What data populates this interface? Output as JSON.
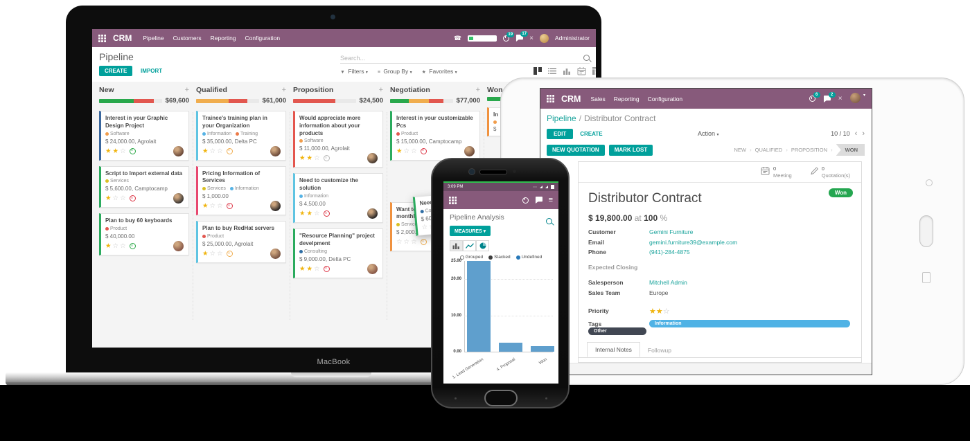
{
  "laptop": {
    "brand_label": "MacBook",
    "navbar": {
      "app_name": "CRM",
      "menus": [
        "Pipeline",
        "Customers",
        "Reporting",
        "Configuration"
      ],
      "timer_badge": "19",
      "chat_badge": "17",
      "close_glyph": "×",
      "user_name": "Administrator"
    },
    "control": {
      "page_title": "Pipeline",
      "create_label": "CREATE",
      "import_label": "IMPORT",
      "search_placeholder": "Search...",
      "filters_label": "Filters",
      "groupby_label": "Group By",
      "favorites_label": "Favorites",
      "view_switcher": [
        "kanban",
        "list",
        "graph",
        "calendar",
        "pivot"
      ],
      "active_view": "kanban"
    },
    "kanban": {
      "columns": [
        {
          "name": "New",
          "amount": "$69,600",
          "progress": [
            {
              "color": "#29a84c",
              "pct": 55
            },
            {
              "color": "#e2574f",
              "pct": 32
            }
          ],
          "cards": [
            {
              "title": "Interest in your Graphic Design Project",
              "tags": [
                {
                  "name": "Software",
                  "color": "#f19d4b"
                }
              ],
              "amount": "$ 24,000.00, Agrolait",
              "stars": 2,
              "clock": "#28a745",
              "border": "#3a679e",
              "avatar": "#6d4b3a"
            },
            {
              "title": "Script to Import external data",
              "tags": [
                {
                  "name": "Services",
                  "color": "#d9bf23"
                }
              ],
              "amount": "$ 5,600.00, Camptocamp",
              "stars": 1,
              "clock": "#dc3545",
              "border": "#2bab5e",
              "avatar": "#3f3a36"
            },
            {
              "title": "Plan to buy 60 keyboards",
              "tags": [
                {
                  "name": "Product",
                  "color": "#e2574f"
                }
              ],
              "amount": "$ 40,000.00",
              "stars": 1,
              "clock": "#28a745",
              "border": "#2bab5e",
              "avatar": "#8a5a4a"
            }
          ]
        },
        {
          "name": "Qualified",
          "amount": "$61,000",
          "progress": [
            {
              "color": "#f0ad4e",
              "pct": 52
            },
            {
              "color": "#e2574f",
              "pct": 30
            }
          ],
          "cards": [
            {
              "title": "Trainee's training plan in your Organization",
              "tags": [
                {
                  "name": "Information",
                  "color": "#56b3e5"
                },
                {
                  "name": "Training",
                  "color": "#ec7a47"
                }
              ],
              "amount": "$ 35,000.00, Delta PC",
              "stars": 1,
              "clock": "#f0ad4e",
              "border": "#5fc4e2",
              "avatar": "#6d4b3a"
            },
            {
              "title": "Pricing Information of Services",
              "tags": [
                {
                  "name": "Services",
                  "color": "#d9bf23"
                },
                {
                  "name": "Information",
                  "color": "#56b3e5"
                }
              ],
              "amount": "$ 1,000.00",
              "stars": 1,
              "clock": "#dc3545",
              "border": "#e8486f",
              "avatar": "#2e2a28"
            },
            {
              "title": "Plan to buy RedHat servers",
              "tags": [
                {
                  "name": "Product",
                  "color": "#e2574f"
                }
              ],
              "amount": "$ 25,000.00, Agrolait",
              "stars": 1,
              "clock": "#f0ad4e",
              "border": "#5fc4e2",
              "avatar": "#7a5644"
            }
          ]
        },
        {
          "name": "Proposition",
          "amount": "$24,500",
          "progress": [
            {
              "color": "#e2574f",
              "pct": 67
            }
          ],
          "cards": [
            {
              "title": "Would appreciate more information about your products",
              "tags": [
                {
                  "name": "Software",
                  "color": "#f19d4b"
                }
              ],
              "amount": "$ 11,000.00, Agrolait",
              "stars": 2,
              "clock": "#b9b9b9",
              "border": "#e4564e",
              "avatar": "#4a3b30"
            },
            {
              "title": "Need to customize the solution",
              "tags": [
                {
                  "name": "Information",
                  "color": "#56b3e5"
                }
              ],
              "amount": "$ 4,500.00",
              "stars": 2,
              "clock": "#dc3545",
              "border": "#5fc4e2",
              "avatar": "#2e2a28"
            },
            {
              "title": "\"Resource Planning\" project develpment",
              "tags": [
                {
                  "name": "Consulting",
                  "color": "#2e6da4"
                }
              ],
              "amount": "$ 9,000.00, Delta PC",
              "stars": 2,
              "clock": "#dc3545",
              "border": "#2bab5e",
              "avatar": "#8a5a4a"
            }
          ]
        },
        {
          "name": "Negotiation",
          "amount": "$77,000",
          "progress": [
            {
              "color": "#29a84c",
              "pct": 30
            },
            {
              "color": "#f0ad4e",
              "pct": 32
            },
            {
              "color": "#e2574f",
              "pct": 23
            }
          ],
          "cards": [
            {
              "title": "Interest in your customizable Pcs",
              "tags": [
                {
                  "name": "Product",
                  "color": "#e2574f"
                }
              ],
              "amount": "$ 15,000.00, Camptocamp",
              "stars": 1,
              "clock": "#dc3545",
              "border": "#2bab5e",
              "avatar": "#6d4b3a"
            },
            {
              "title": "Want to subscribe to your monthly solution",
              "tags": [
                {
                  "name": "Services",
                  "color": "#d9bf23"
                }
              ],
              "amount": "$ 2,000.00, Think Big Systems",
              "stars": 0,
              "clock": "#f0ad4e",
              "border": "#f0923f",
              "avatar": "#7a5644",
              "gap_before": 52
            }
          ]
        },
        {
          "name": "Won",
          "amount": "",
          "progress": [
            {
              "color": "#29a84c",
              "pct": 45
            }
          ],
          "cards": [
            {
              "title": "In",
              "tags": [
                {
                  "name": "",
                  "color": "#f19d4b"
                }
              ],
              "amount": "$",
              "stars": 0,
              "border": "#f0923f",
              "minimal": true
            }
          ]
        }
      ],
      "drag_card": {
        "title": "Need 20 Days of Consultancy",
        "tags": [
          {
            "name": "Consulting",
            "color": "#2e6da4"
          }
        ],
        "amount": "$ 60,000.00",
        "stars": 0,
        "border": "#2bab5e"
      }
    }
  },
  "tablet": {
    "navbar": {
      "app_name": "CRM",
      "menus": [
        "Sales",
        "Reporting",
        "Configuration"
      ],
      "timer_badge": "6",
      "chat_badge": "2",
      "close_glyph": "×"
    },
    "breadcrumb": {
      "parent": "Pipeline",
      "sep": "/",
      "current": "Distributor Contract"
    },
    "actions": {
      "edit": "EDIT",
      "create": "CREATE",
      "action": "Action",
      "pager": "10 / 10",
      "prev": "‹",
      "next": "›"
    },
    "buttons": {
      "new_quotation": "NEW QUOTATION",
      "mark_lost": "MARK LOST"
    },
    "stages": [
      "NEW",
      "QUALIFIED",
      "PROPOSITION",
      "WON"
    ],
    "active_stage": "WON",
    "stats": [
      {
        "icon": "calendar",
        "count": "0",
        "label": "Meeting"
      },
      {
        "icon": "pencil",
        "count": "0",
        "label": "Quotation(s)"
      }
    ],
    "record": {
      "status_badge": "Won",
      "title": "Distributor Contract",
      "amount": "$ 19,800.00",
      "at_label": "at",
      "probability": "100",
      "percent_label": "%",
      "fields": [
        {
          "label": "Customer",
          "value": "Gemini Furniture",
          "link": true
        },
        {
          "label": "Email",
          "value": "gemini.furniture39@example.com",
          "link": true
        },
        {
          "label": "Phone",
          "value": "(941)-284-4875",
          "link": true
        },
        {
          "label": "Expected Closing",
          "value": "",
          "link": false,
          "gap": true,
          "muted": true
        },
        {
          "label": "Salesperson",
          "value": "Mitchell Admin",
          "link": true,
          "gap": true
        },
        {
          "label": "Sales Team",
          "value": "Europe",
          "link": false
        },
        {
          "label": "Priority",
          "type": "stars",
          "stars": 2,
          "total": 3,
          "gap": true
        },
        {
          "label": "Tags",
          "type": "tags",
          "items": [
            {
              "name": "Information",
              "color": "#4fb2e5"
            },
            {
              "name": "Other",
              "color": "#414753"
            }
          ]
        }
      ],
      "tabs": [
        {
          "label": "Internal Notes",
          "active": true
        },
        {
          "label": "Followup",
          "active": false
        }
      ]
    }
  },
  "phone": {
    "status": {
      "time": "3:09 PM"
    },
    "title": "Pipeline Analysis",
    "measures_label": "MEASURES",
    "view_icons": [
      "bar",
      "line",
      "pie"
    ],
    "active_view": "bar"
  },
  "chart_data": {
    "type": "bar",
    "title": "Pipeline Analysis",
    "categories": [
      "1. Lead Generation",
      "4. Proposal",
      "Won"
    ],
    "values": [
      25,
      2.5,
      1.5
    ],
    "series": [
      {
        "name": "Undefined",
        "color": "#5f9fcd",
        "values": [
          25,
          2.5,
          1.5
        ]
      }
    ],
    "xlabel": "",
    "ylabel": "",
    "ylim": [
      0,
      25
    ],
    "yticks": [
      25,
      20,
      10,
      0
    ],
    "ytick_labels": [
      "25.00",
      "20.00",
      "10.00",
      "0.00"
    ],
    "grid": true,
    "legend_position": "top",
    "legend": [
      {
        "label": "Grouped",
        "color": "#ffffff",
        "hollow": true
      },
      {
        "label": "Stacked",
        "color": "#3d3d3d",
        "hollow": false
      },
      {
        "label": "Undefined",
        "color": "#2878b8",
        "hollow": false
      }
    ]
  }
}
